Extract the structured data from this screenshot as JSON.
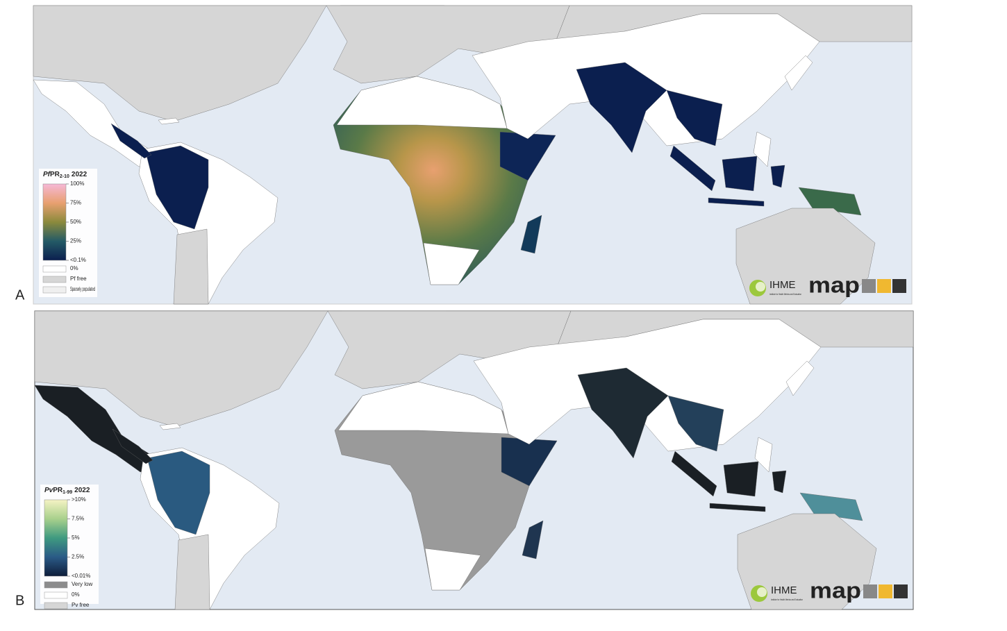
{
  "panels": [
    {
      "label": "A",
      "legend": {
        "title": {
          "italic": "Pf",
          "text": "PR",
          "sub": "2-10",
          "year": "2022"
        },
        "scale": [
          "100%",
          "75%",
          "50%",
          "25%",
          "<0.1%"
        ],
        "keys": [
          "0%",
          "Pf free",
          "Sparsely populated"
        ]
      }
    },
    {
      "label": "B",
      "legend": {
        "title": {
          "italic": "Pv",
          "text": "PR",
          "sub": "1-99",
          "year": "2022"
        },
        "scale": [
          ">10%",
          "7.5%",
          "5%",
          "2.5%",
          "<0.01%"
        ],
        "keys": [
          "Very low",
          "0%",
          "Pv free"
        ]
      }
    }
  ],
  "logos": {
    "ihme": "IHME",
    "ihme_sub": "Institute for Health Metrics and Evaluation",
    "map": "map"
  }
}
